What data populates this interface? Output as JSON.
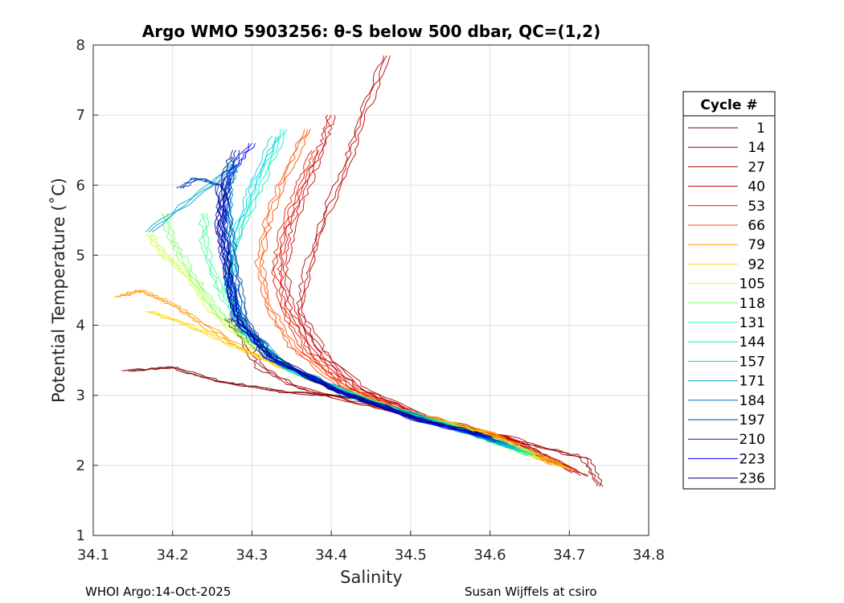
{
  "chart_data": {
    "type": "line",
    "title": "Argo WMO 5903256: θ-S below 500 dbar,  QC=(1,2)",
    "xlabel": "Salinity",
    "ylabel": "Potential Temperature (˚C)",
    "xlim": [
      34.1,
      34.8
    ],
    "ylim": [
      1,
      8
    ],
    "xticks": [
      34.1,
      34.2,
      34.3,
      34.4,
      34.5,
      34.6,
      34.7,
      34.8
    ],
    "yticks": [
      1,
      2,
      3,
      4,
      5,
      6,
      7,
      8
    ],
    "xtick_labels": [
      "34.1",
      "34.2",
      "34.3",
      "34.4",
      "34.5",
      "34.6",
      "34.7",
      "34.8"
    ],
    "ytick_labels": [
      "1",
      "2",
      "3",
      "4",
      "5",
      "6",
      "7",
      "8"
    ],
    "grid": true,
    "legend_position": "right",
    "legend_title": "Cycle #",
    "series": [
      {
        "name": "1",
        "color": "#800000",
        "points": [
          [
            34.44,
            2.95
          ],
          [
            34.34,
            3.05
          ],
          [
            34.26,
            3.2
          ],
          [
            34.2,
            3.4
          ],
          [
            34.14,
            3.35
          ]
        ]
      },
      {
        "name": "14",
        "color": "#990000",
        "points": [
          [
            34.74,
            1.7
          ],
          [
            34.72,
            2.1
          ],
          [
            34.64,
            2.33
          ],
          [
            34.55,
            2.58
          ],
          [
            34.45,
            2.85
          ],
          [
            34.36,
            3.1
          ],
          [
            34.31,
            3.4
          ],
          [
            34.29,
            3.8
          ],
          [
            34.27,
            4.1
          ]
        ]
      },
      {
        "name": "27",
        "color": "#b30000",
        "points": [
          [
            34.72,
            1.85
          ],
          [
            34.63,
            2.38
          ],
          [
            34.52,
            2.7
          ],
          [
            34.44,
            3.1
          ],
          [
            34.39,
            3.6
          ],
          [
            34.36,
            4.2
          ],
          [
            34.37,
            4.8
          ],
          [
            34.39,
            5.5
          ],
          [
            34.42,
            6.3
          ],
          [
            34.44,
            7.0
          ],
          [
            34.47,
            7.85
          ]
        ]
      },
      {
        "name": "40",
        "color": "#cc0000",
        "points": [
          [
            34.71,
            1.9
          ],
          [
            34.62,
            2.4
          ],
          [
            34.51,
            2.72
          ],
          [
            34.43,
            3.1
          ],
          [
            34.38,
            3.6
          ],
          [
            34.35,
            4.2
          ],
          [
            34.34,
            4.8
          ],
          [
            34.35,
            5.4
          ],
          [
            34.37,
            6.0
          ],
          [
            34.39,
            6.6
          ],
          [
            34.4,
            7.0
          ]
        ]
      },
      {
        "name": "53",
        "color": "#e61a00",
        "points": [
          [
            34.7,
            1.95
          ],
          [
            34.61,
            2.42
          ],
          [
            34.5,
            2.74
          ],
          [
            34.42,
            3.1
          ],
          [
            34.37,
            3.6
          ],
          [
            34.34,
            4.2
          ],
          [
            34.33,
            4.8
          ],
          [
            34.34,
            5.4
          ],
          [
            34.36,
            6.0
          ],
          [
            34.38,
            6.5
          ]
        ]
      },
      {
        "name": "66",
        "color": "#ff4d00",
        "points": [
          [
            34.69,
            1.98
          ],
          [
            34.6,
            2.45
          ],
          [
            34.49,
            2.78
          ],
          [
            34.41,
            3.15
          ],
          [
            34.35,
            3.7
          ],
          [
            34.32,
            4.3
          ],
          [
            34.31,
            4.9
          ],
          [
            34.32,
            5.5
          ],
          [
            34.34,
            6.1
          ],
          [
            34.37,
            6.8
          ]
        ]
      },
      {
        "name": "79",
        "color": "#ff9900",
        "points": [
          [
            34.68,
            2.0
          ],
          [
            34.6,
            2.46
          ],
          [
            34.48,
            2.82
          ],
          [
            34.38,
            3.2
          ],
          [
            34.3,
            3.6
          ],
          [
            34.24,
            4.0
          ],
          [
            34.2,
            4.3
          ],
          [
            34.16,
            4.5
          ],
          [
            34.13,
            4.4
          ]
        ]
      },
      {
        "name": "92",
        "color": "#ffd700",
        "points": [
          [
            34.7,
            1.95
          ],
          [
            34.6,
            2.45
          ],
          [
            34.48,
            2.8
          ],
          [
            34.37,
            3.25
          ],
          [
            34.28,
            3.7
          ],
          [
            34.22,
            4.0
          ],
          [
            34.17,
            4.2
          ]
        ]
      },
      {
        "name": "105",
        "color": "#ccff33",
        "points": [
          [
            34.66,
            2.1
          ],
          [
            34.57,
            2.5
          ],
          [
            34.47,
            2.85
          ],
          [
            34.37,
            3.25
          ],
          [
            34.3,
            3.7
          ],
          [
            34.25,
            4.2
          ],
          [
            34.22,
            4.7
          ],
          [
            34.19,
            5.0
          ],
          [
            34.17,
            5.3
          ]
        ]
      },
      {
        "name": "118",
        "color": "#80ff66",
        "points": [
          [
            34.66,
            2.15
          ],
          [
            34.57,
            2.52
          ],
          [
            34.46,
            2.88
          ],
          [
            34.36,
            3.3
          ],
          [
            34.29,
            3.8
          ],
          [
            34.25,
            4.3
          ],
          [
            34.22,
            4.8
          ],
          [
            34.2,
            5.2
          ],
          [
            34.19,
            5.6
          ]
        ]
      },
      {
        "name": "131",
        "color": "#33ff99",
        "points": [
          [
            34.65,
            2.15
          ],
          [
            34.56,
            2.53
          ],
          [
            34.45,
            2.9
          ],
          [
            34.35,
            3.35
          ],
          [
            34.29,
            3.9
          ],
          [
            34.26,
            4.5
          ],
          [
            34.24,
            5.1
          ],
          [
            34.24,
            5.6
          ]
        ]
      },
      {
        "name": "144",
        "color": "#00f0c0",
        "points": [
          [
            34.65,
            2.15
          ],
          [
            34.56,
            2.54
          ],
          [
            34.45,
            2.9
          ],
          [
            34.35,
            3.35
          ],
          [
            34.29,
            3.9
          ],
          [
            34.27,
            4.5
          ],
          [
            34.28,
            5.2
          ],
          [
            34.31,
            6.0
          ],
          [
            34.34,
            6.8
          ]
        ]
      },
      {
        "name": "157",
        "color": "#00d0e6",
        "points": [
          [
            34.64,
            2.2
          ],
          [
            34.55,
            2.55
          ],
          [
            34.44,
            2.92
          ],
          [
            34.34,
            3.4
          ],
          [
            34.29,
            3.95
          ],
          [
            34.27,
            4.6
          ],
          [
            34.28,
            5.3
          ],
          [
            34.3,
            6.0
          ],
          [
            34.33,
            6.7
          ]
        ]
      },
      {
        "name": "171",
        "color": "#00a0d0",
        "points": [
          [
            34.63,
            2.25
          ],
          [
            34.55,
            2.56
          ],
          [
            34.44,
            2.95
          ],
          [
            34.34,
            3.45
          ],
          [
            34.29,
            4.0
          ],
          [
            34.27,
            4.6
          ],
          [
            34.27,
            5.3
          ],
          [
            34.27,
            6.0
          ],
          [
            34.28,
            6.3
          ],
          [
            34.17,
            5.33
          ]
        ]
      },
      {
        "name": "184",
        "color": "#0070c0",
        "points": [
          [
            34.62,
            2.3
          ],
          [
            34.54,
            2.58
          ],
          [
            34.43,
            2.98
          ],
          [
            34.33,
            3.5
          ],
          [
            34.29,
            4.0
          ],
          [
            34.28,
            4.6
          ],
          [
            34.27,
            5.3
          ],
          [
            34.27,
            6.0
          ],
          [
            34.28,
            6.4
          ]
        ]
      },
      {
        "name": "197",
        "color": "#0040b0",
        "points": [
          [
            34.61,
            2.35
          ],
          [
            34.53,
            2.6
          ],
          [
            34.42,
            3.0
          ],
          [
            34.33,
            3.5
          ],
          [
            34.29,
            4.05
          ],
          [
            34.28,
            4.7
          ],
          [
            34.27,
            5.4
          ],
          [
            34.26,
            6.0
          ],
          [
            34.23,
            6.1
          ],
          [
            34.21,
            5.95
          ]
        ]
      },
      {
        "name": "210",
        "color": "#001a99",
        "points": [
          [
            34.6,
            2.4
          ],
          [
            34.52,
            2.62
          ],
          [
            34.41,
            3.05
          ],
          [
            34.32,
            3.55
          ],
          [
            34.28,
            4.1
          ],
          [
            34.27,
            4.7
          ],
          [
            34.26,
            5.4
          ],
          [
            34.26,
            6.0
          ],
          [
            34.28,
            6.5
          ]
        ]
      },
      {
        "name": "223",
        "color": "#0000ff",
        "points": [
          [
            34.6,
            2.4
          ],
          [
            34.51,
            2.64
          ],
          [
            34.41,
            3.05
          ],
          [
            34.32,
            3.55
          ],
          [
            34.28,
            4.1
          ],
          [
            34.27,
            4.7
          ],
          [
            34.26,
            5.4
          ],
          [
            34.27,
            6.1
          ],
          [
            34.3,
            6.6
          ]
        ]
      },
      {
        "name": "236",
        "color": "#000080",
        "points": [
          [
            34.59,
            2.45
          ],
          [
            34.51,
            2.66
          ],
          [
            34.4,
            3.1
          ],
          [
            34.32,
            3.6
          ],
          [
            34.28,
            4.15
          ],
          [
            34.27,
            4.75
          ],
          [
            34.26,
            5.45
          ],
          [
            34.27,
            6.1
          ]
        ]
      }
    ]
  },
  "footer": {
    "left": "WHOI Argo:14-Oct-2025",
    "right": "Susan Wijffels at csiro"
  }
}
